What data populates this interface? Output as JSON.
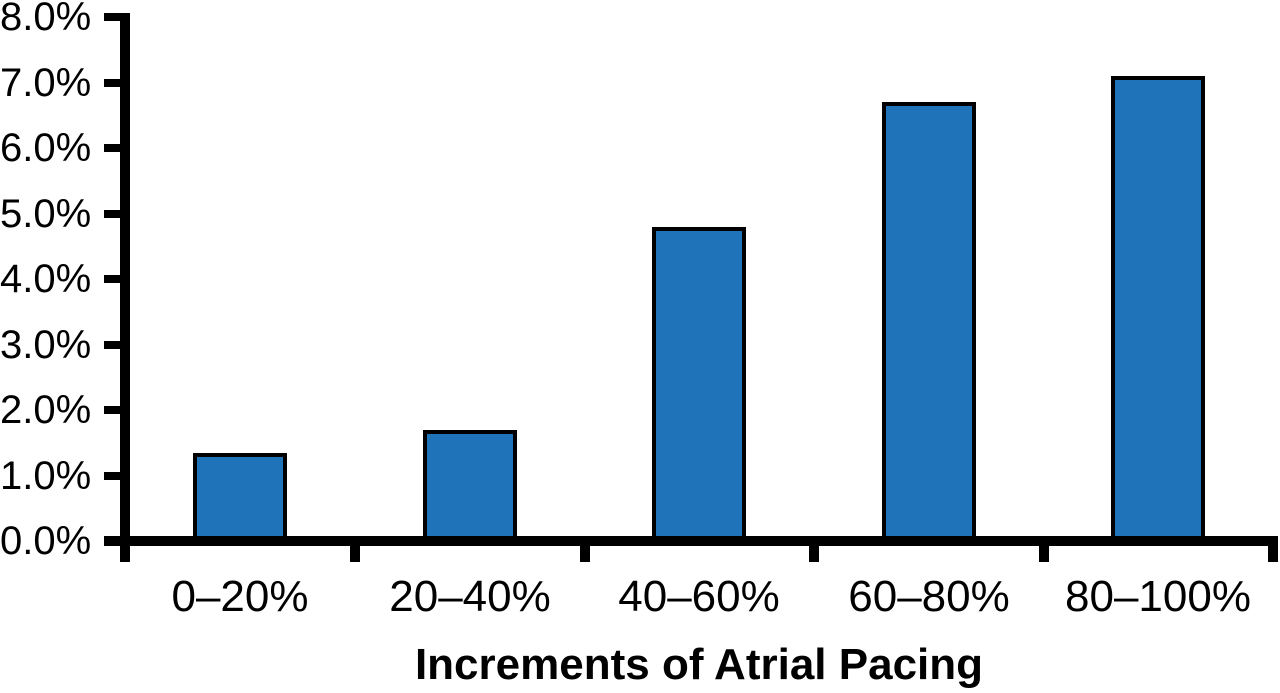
{
  "chart_data": {
    "type": "bar",
    "title": "",
    "xlabel": "Increments of Atrial Pacing",
    "ylabel": "",
    "categories": [
      "0–20%",
      "20–40%",
      "40–60%",
      "60–80%",
      "80–100%"
    ],
    "values": [
      1.35,
      1.7,
      4.8,
      6.7,
      7.1
    ],
    "value_unit": "%",
    "ylim": [
      0,
      8
    ],
    "ytick_step": 1,
    "ytick_labels": [
      "0.0%",
      "1.0%",
      "2.0%",
      "3.0%",
      "4.0%",
      "5.0%",
      "6.0%",
      "7.0%",
      "8.0%"
    ],
    "grid": false,
    "legend": null,
    "colors": {
      "bar_fill": "#1F73B8",
      "bar_border": "#000000",
      "axis": "#000000",
      "text": "#000000",
      "background": "#FFFFFF"
    }
  }
}
